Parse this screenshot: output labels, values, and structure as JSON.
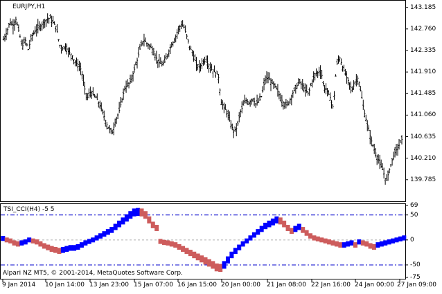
{
  "chart_window": {
    "symbol_label": "EURJPY,H1",
    "indicator_label": "TSI_CCI(H4) -5 5",
    "copyright": "Alpari NZ MT5, © 2001-2014, MetaQuotes Software Corp."
  },
  "colors": {
    "up_bars": "#0000ff",
    "down_bars": "#cd5c5c",
    "level_lines": "#0000cd",
    "zero_line": "#b0b0b0",
    "price_bars": "#000000"
  },
  "chart_data": [
    {
      "type": "ohlc",
      "title": "EURJPY,H1",
      "y_ticks": [
        "143.185",
        "142.760",
        "142.335",
        "141.910",
        "141.485",
        "141.060",
        "140.635",
        "140.210",
        "139.785"
      ],
      "ylim": [
        139.4,
        143.29
      ],
      "close_path": [
        142.55,
        142.68,
        142.9,
        142.82,
        142.95,
        142.7,
        142.4,
        142.55,
        142.35,
        142.6,
        142.7,
        142.78,
        142.82,
        142.9,
        142.95,
        142.98,
        142.88,
        142.8,
        142.45,
        142.38,
        142.42,
        142.3,
        142.25,
        142.1,
        142.05,
        141.95,
        141.6,
        141.4,
        141.52,
        141.45,
        141.38,
        141.25,
        141.1,
        140.9,
        140.78,
        140.72,
        140.95,
        141.1,
        141.35,
        141.6,
        141.65,
        141.75,
        141.95,
        142.15,
        142.4,
        142.55,
        142.48,
        142.42,
        142.35,
        142.2,
        142.1,
        142.05,
        142.12,
        142.3,
        142.45,
        142.55,
        142.72,
        142.85,
        142.8,
        142.6,
        142.38,
        142.25,
        142.05,
        142.0,
        142.1,
        142.18,
        142.05,
        141.95,
        141.9,
        141.85,
        141.3,
        141.2,
        141.1,
        140.88,
        140.75,
        140.8,
        141.1,
        141.25,
        141.35,
        141.3,
        141.4,
        141.28,
        141.32,
        141.45,
        141.75,
        141.8,
        141.7,
        141.65,
        141.55,
        141.4,
        141.3,
        141.25,
        141.35,
        141.5,
        141.6,
        141.72,
        141.65,
        141.55,
        141.48,
        141.7,
        141.85,
        141.9,
        141.95,
        141.6,
        141.55,
        141.4,
        141.2,
        142.05,
        142.2,
        142.0,
        141.85,
        141.7,
        141.55,
        141.72,
        141.8,
        141.45,
        141.1,
        140.85,
        140.6,
        140.4,
        140.25,
        140.1,
        139.95,
        139.75,
        139.98,
        140.2,
        140.35,
        140.45,
        140.58
      ],
      "x_ticks": [
        "9 Jan 2014",
        "10 Jan 14:00",
        "13 Jan 23:00",
        "15 Jan 07:00",
        "16 Jan 15:00",
        "20 Jan 00:00",
        "21 Jan 08:00",
        "22 Jan 16:00",
        "24 Jan 00:00",
        "27 Jan 09:00"
      ]
    },
    {
      "type": "bar",
      "title": "TSI_CCI(H4) -5 5",
      "y_ticks": [
        "69",
        "50",
        "0",
        "-50",
        "-75"
      ],
      "ylim": [
        -75,
        69
      ],
      "levels": [
        50,
        0,
        -50
      ],
      "values": [
        3,
        0,
        -2,
        -6,
        -8,
        -6,
        -4,
        0,
        -2,
        -4,
        -8,
        -12,
        -15,
        -18,
        -20,
        -22,
        -20,
        -18,
        -16,
        -16,
        -14,
        -10,
        -6,
        -3,
        0,
        4,
        8,
        12,
        16,
        20,
        26,
        32,
        38,
        44,
        50,
        55,
        56,
        55,
        50,
        40,
        30,
        24,
        -3,
        -5,
        -6,
        -8,
        -10,
        -14,
        -18,
        -22,
        -26,
        -30,
        -34,
        -38,
        -42,
        -46,
        -50,
        -55,
        -56,
        -50,
        -40,
        -30,
        -22,
        -15,
        -8,
        -2,
        4,
        10,
        16,
        22,
        28,
        32,
        36,
        40,
        38,
        32,
        24,
        18,
        22,
        26,
        20,
        14,
        8,
        4,
        2,
        0,
        -2,
        -4,
        -6,
        -8,
        -10,
        -10,
        -8,
        -6,
        -10,
        -4,
        -6,
        -8,
        -12,
        -14,
        -10,
        -8,
        -6,
        -4,
        -2,
        0,
        2,
        4
      ]
    }
  ]
}
